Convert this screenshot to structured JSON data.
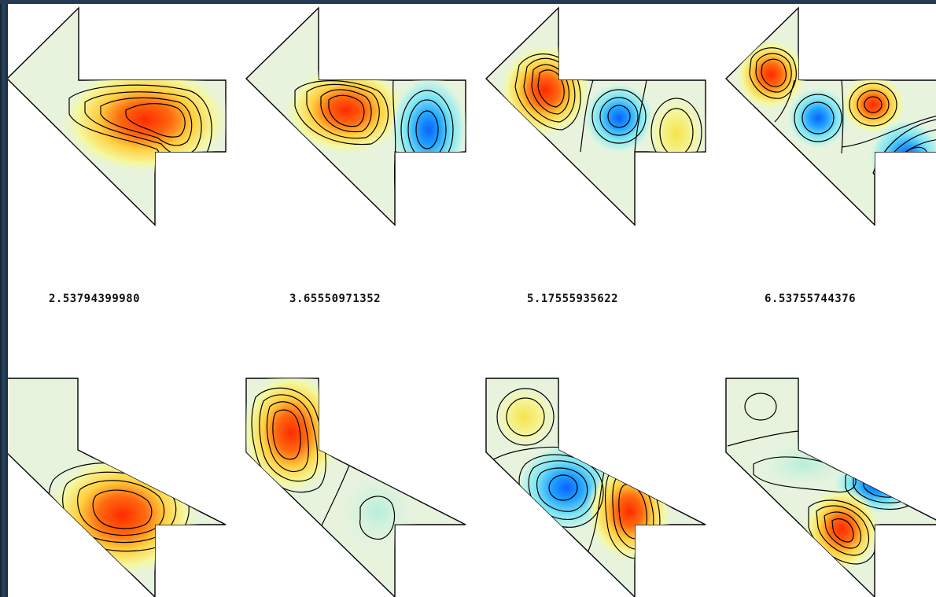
{
  "figure": {
    "eigenvalues": [
      "2.53794399980",
      "3.65550971352",
      "5.17555935622",
      "6.53755744376"
    ]
  },
  "colors": {
    "background": "#1a2a3c",
    "panel": "#ffffff",
    "contour_line": "#000000",
    "positive_peak": "#ff2a00",
    "negative_peak": "#0a63ff",
    "neutral": "#e6f5dc"
  }
}
